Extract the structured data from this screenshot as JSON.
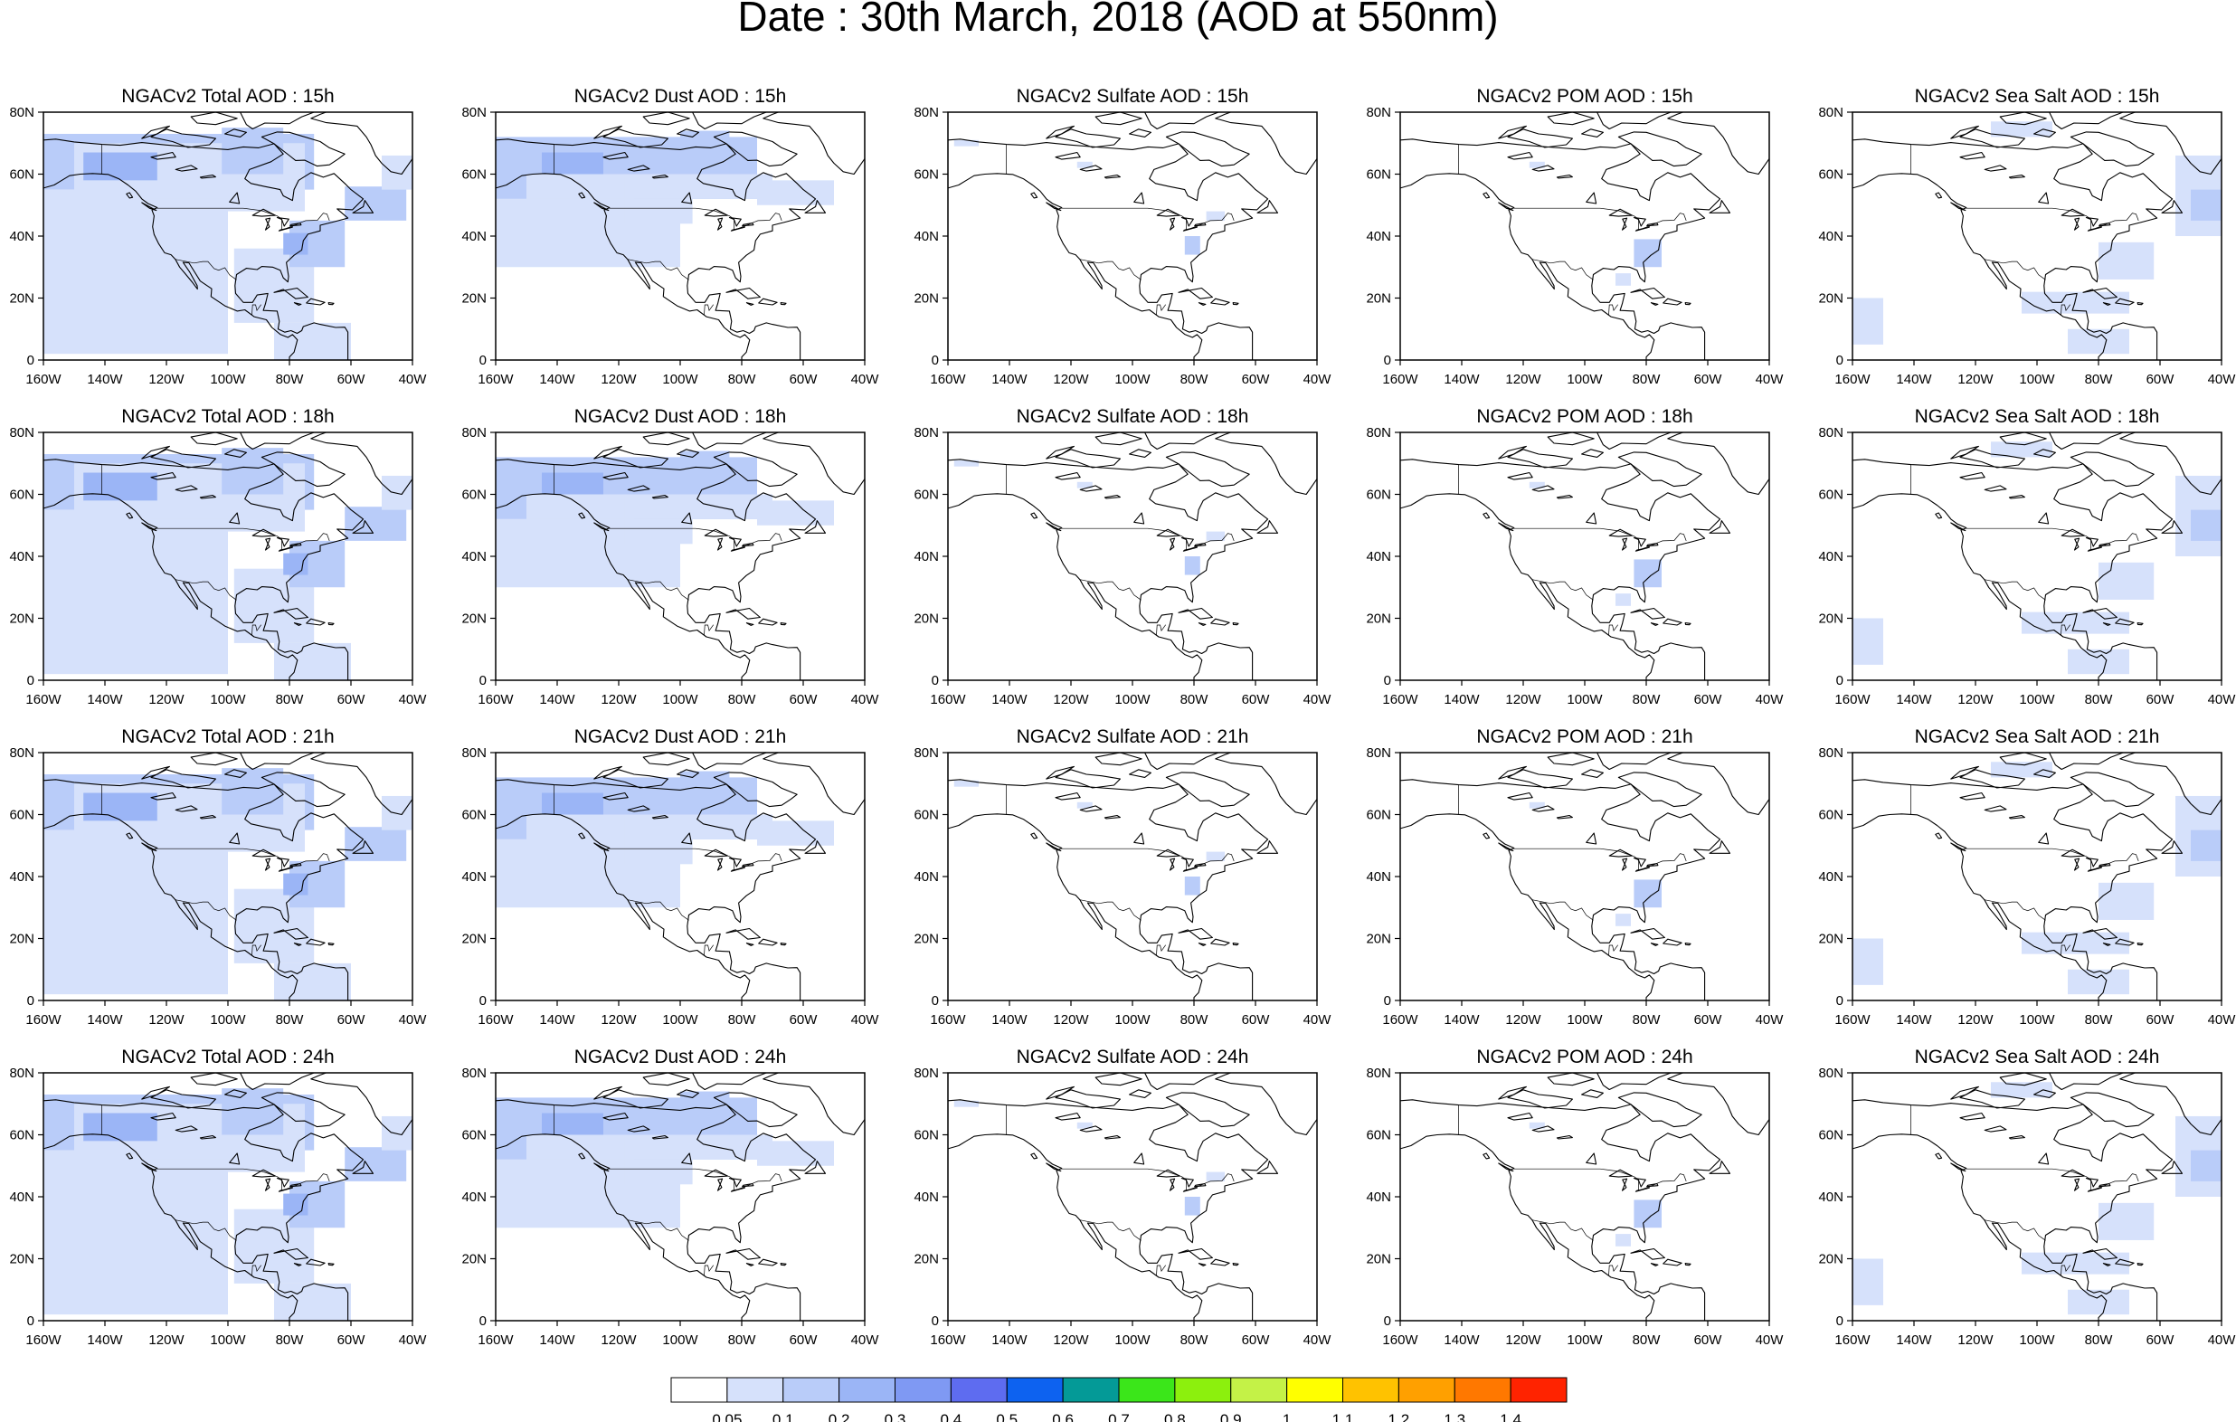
{
  "title": "Date : 30th March, 2018 (AOD at 550nm)",
  "map_axes": {
    "lon_labels": [
      "160W",
      "140W",
      "120W",
      "100W",
      "80W",
      "60W",
      "40W"
    ],
    "lat_labels": [
      "0",
      "20N",
      "40N",
      "60N",
      "80N"
    ],
    "lon_range": [
      -160,
      -40
    ],
    "lat_range": [
      0,
      80
    ]
  },
  "panels": [
    {
      "title": "NGACv2 Total AOD : 15h",
      "field": "total"
    },
    {
      "title": "NGACv2 Dust AOD : 15h",
      "field": "dust"
    },
    {
      "title": "NGACv2 Sulfate AOD : 15h",
      "field": "sulfate"
    },
    {
      "title": "NGACv2 POM AOD : 15h",
      "field": "pom"
    },
    {
      "title": "NGACv2 Sea Salt AOD : 15h",
      "field": "seasalt"
    },
    {
      "title": "NGACv2 Total AOD : 18h",
      "field": "total"
    },
    {
      "title": "NGACv2 Dust AOD : 18h",
      "field": "dust"
    },
    {
      "title": "NGACv2 Sulfate AOD : 18h",
      "field": "sulfate"
    },
    {
      "title": "NGACv2 POM AOD : 18h",
      "field": "pom"
    },
    {
      "title": "NGACv2 Sea Salt AOD : 18h",
      "field": "seasalt"
    },
    {
      "title": "NGACv2 Total AOD : 21h",
      "field": "total"
    },
    {
      "title": "NGACv2 Dust AOD : 21h",
      "field": "dust"
    },
    {
      "title": "NGACv2 Sulfate AOD : 21h",
      "field": "sulfate"
    },
    {
      "title": "NGACv2 POM AOD : 21h",
      "field": "pom"
    },
    {
      "title": "NGACv2 Sea Salt AOD : 21h",
      "field": "seasalt"
    },
    {
      "title": "NGACv2 Total AOD : 24h",
      "field": "total"
    },
    {
      "title": "NGACv2 Dust AOD : 24h",
      "field": "dust"
    },
    {
      "title": "NGACv2 Sulfate AOD : 24h",
      "field": "sulfate"
    },
    {
      "title": "NGACv2 POM AOD : 24h",
      "field": "pom"
    },
    {
      "title": "NGACv2 Sea Salt  AOD : 24h",
      "field": "seasalt"
    }
  ],
  "colorbar": {
    "labels": [
      "0.05",
      "0.1",
      "0.2",
      "0.3",
      "0.4",
      "0.5",
      "0.6",
      "0.7",
      "0.8",
      "0.9",
      "1",
      "1.1",
      "1.2",
      "1.3",
      "1.4"
    ],
    "colors": [
      "#ffffff",
      "#d6e1fb",
      "#b9ccf9",
      "#9bb5f6",
      "#7f99f3",
      "#5e6cf0",
      "#0d62f0",
      "#049a97",
      "#3be61a",
      "#8cf00d",
      "#c4f247",
      "#ffff00",
      "#ffc200",
      "#ffa000",
      "#ff7800",
      "#ff2300"
    ]
  },
  "colors": {
    "coastline": "#000000",
    "frame": "#000000"
  }
}
